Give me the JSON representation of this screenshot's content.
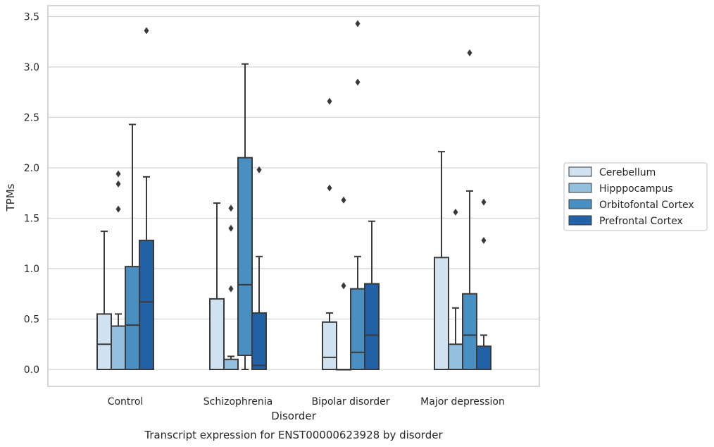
{
  "chart_data": {
    "type": "box",
    "title": "",
    "caption": "Transcript expression for ENST00000623928 by disorder",
    "xlabel": "Disorder",
    "ylabel": "TPMs",
    "ylim": [
      -0.17,
      3.6
    ],
    "yticks": [
      "0.0",
      "0.5",
      "1.0",
      "1.5",
      "2.0",
      "2.5",
      "3.0",
      "3.5"
    ],
    "ytick_values": [
      0,
      0.5,
      1.0,
      1.5,
      2.0,
      2.5,
      3.0,
      3.5
    ],
    "grid": true,
    "legend_position": "right",
    "categories": [
      "Control",
      "Schizophrenia",
      "Bipolar disorder",
      "Major depression"
    ],
    "series": [
      {
        "name": "Cerebellum",
        "color": "#d0e1f0",
        "boxes": [
          {
            "whisker_low": 0,
            "q1": 0,
            "median": 0.25,
            "q3": 0.55,
            "whisker_high": 1.37,
            "outliers": []
          },
          {
            "whisker_low": 0,
            "q1": 0,
            "median": 0,
            "q3": 0.7,
            "whisker_high": 1.65,
            "outliers": []
          },
          {
            "whisker_low": 0,
            "q1": 0,
            "median": 0.12,
            "q3": 0.47,
            "whisker_high": 0.56,
            "outliers": [
              1.8,
              2.66
            ]
          },
          {
            "whisker_low": 0,
            "q1": 0,
            "median": 0,
            "q3": 1.11,
            "whisker_high": 2.16,
            "outliers": []
          }
        ]
      },
      {
        "name": "Hipppocampus",
        "color": "#93c0de",
        "boxes": [
          {
            "whisker_low": 0,
            "q1": 0,
            "median": 0,
            "q3": 0.43,
            "whisker_high": 0.55,
            "outliers": [
              1.59,
              1.84,
              1.94
            ]
          },
          {
            "whisker_low": 0,
            "q1": 0,
            "median": 0,
            "q3": 0.1,
            "whisker_high": 0.13,
            "outliers": [
              0.8,
              1.4,
              1.6
            ]
          },
          {
            "whisker_low": 0,
            "q1": 0,
            "median": 0,
            "q3": 0,
            "whisker_high": 0,
            "outliers": [
              0.83,
              1.68
            ]
          },
          {
            "whisker_low": 0,
            "q1": 0,
            "median": 0,
            "q3": 0.25,
            "whisker_high": 0.61,
            "outliers": [
              1.56
            ]
          }
        ]
      },
      {
        "name": "Orbitofontal Cortex",
        "color": "#4a8fc1",
        "boxes": [
          {
            "whisker_low": 0,
            "q1": 0,
            "median": 0.44,
            "q3": 1.02,
            "whisker_high": 2.43,
            "outliers": []
          },
          {
            "whisker_low": 0,
            "q1": 0.14,
            "median": 0.84,
            "q3": 2.1,
            "whisker_high": 3.03,
            "outliers": []
          },
          {
            "whisker_low": 0,
            "q1": 0,
            "median": 0.17,
            "q3": 0.8,
            "whisker_high": 1.12,
            "outliers": [
              2.85,
              3.43
            ]
          },
          {
            "whisker_low": 0,
            "q1": 0,
            "median": 0.34,
            "q3": 0.75,
            "whisker_high": 1.77,
            "outliers": [
              3.14
            ]
          }
        ]
      },
      {
        "name": "Prefrontal Cortex",
        "color": "#2261a5",
        "boxes": [
          {
            "whisker_low": 0,
            "q1": 0,
            "median": 0.67,
            "q3": 1.28,
            "whisker_high": 1.91,
            "outliers": [
              3.36
            ]
          },
          {
            "whisker_low": 0,
            "q1": 0,
            "median": 0.04,
            "q3": 0.56,
            "whisker_high": 1.12,
            "outliers": [
              1.98
            ]
          },
          {
            "whisker_low": 0,
            "q1": 0,
            "median": 0.34,
            "q3": 0.85,
            "whisker_high": 1.47,
            "outliers": []
          },
          {
            "whisker_low": 0,
            "q1": 0,
            "median": 0,
            "q3": 0.23,
            "whisker_high": 0.34,
            "outliers": [
              1.28,
              1.66
            ]
          }
        ]
      }
    ]
  }
}
